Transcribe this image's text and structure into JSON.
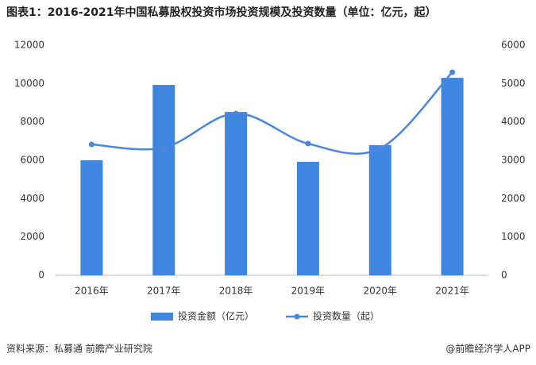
{
  "chart_data": {
    "type": "bar-line",
    "title": "图表1：2016-2021年中国私募股权投资市场投资规模及投资数量（单位：亿元，起）",
    "categories": [
      "2016年",
      "2017年",
      "2018年",
      "2019年",
      "2020年",
      "2021年"
    ],
    "series": [
      {
        "name": "投资金额（亿元）",
        "type": "bar",
        "color": "#3f86e0",
        "values": [
          6000,
          9930,
          8520,
          5920,
          6790,
          10300
        ]
      },
      {
        "name": "投资数量（起）",
        "type": "line",
        "color": "#4a86e0",
        "axis": "y2",
        "values": [
          3414,
          3330,
          4220,
          3434,
          3310,
          5297
        ]
      }
    ],
    "ylim": [
      0,
      12000
    ],
    "yticks": [
      0,
      2000,
      4000,
      6000,
      8000,
      10000,
      12000
    ],
    "y2lim": [
      0,
      6000
    ],
    "y2ticks": [
      0,
      1000,
      2000,
      3000,
      4000,
      5000,
      6000
    ],
    "source": "资料来源：私募通 前瞻产业研究院",
    "credit": "@前瞻经济学人APP"
  }
}
